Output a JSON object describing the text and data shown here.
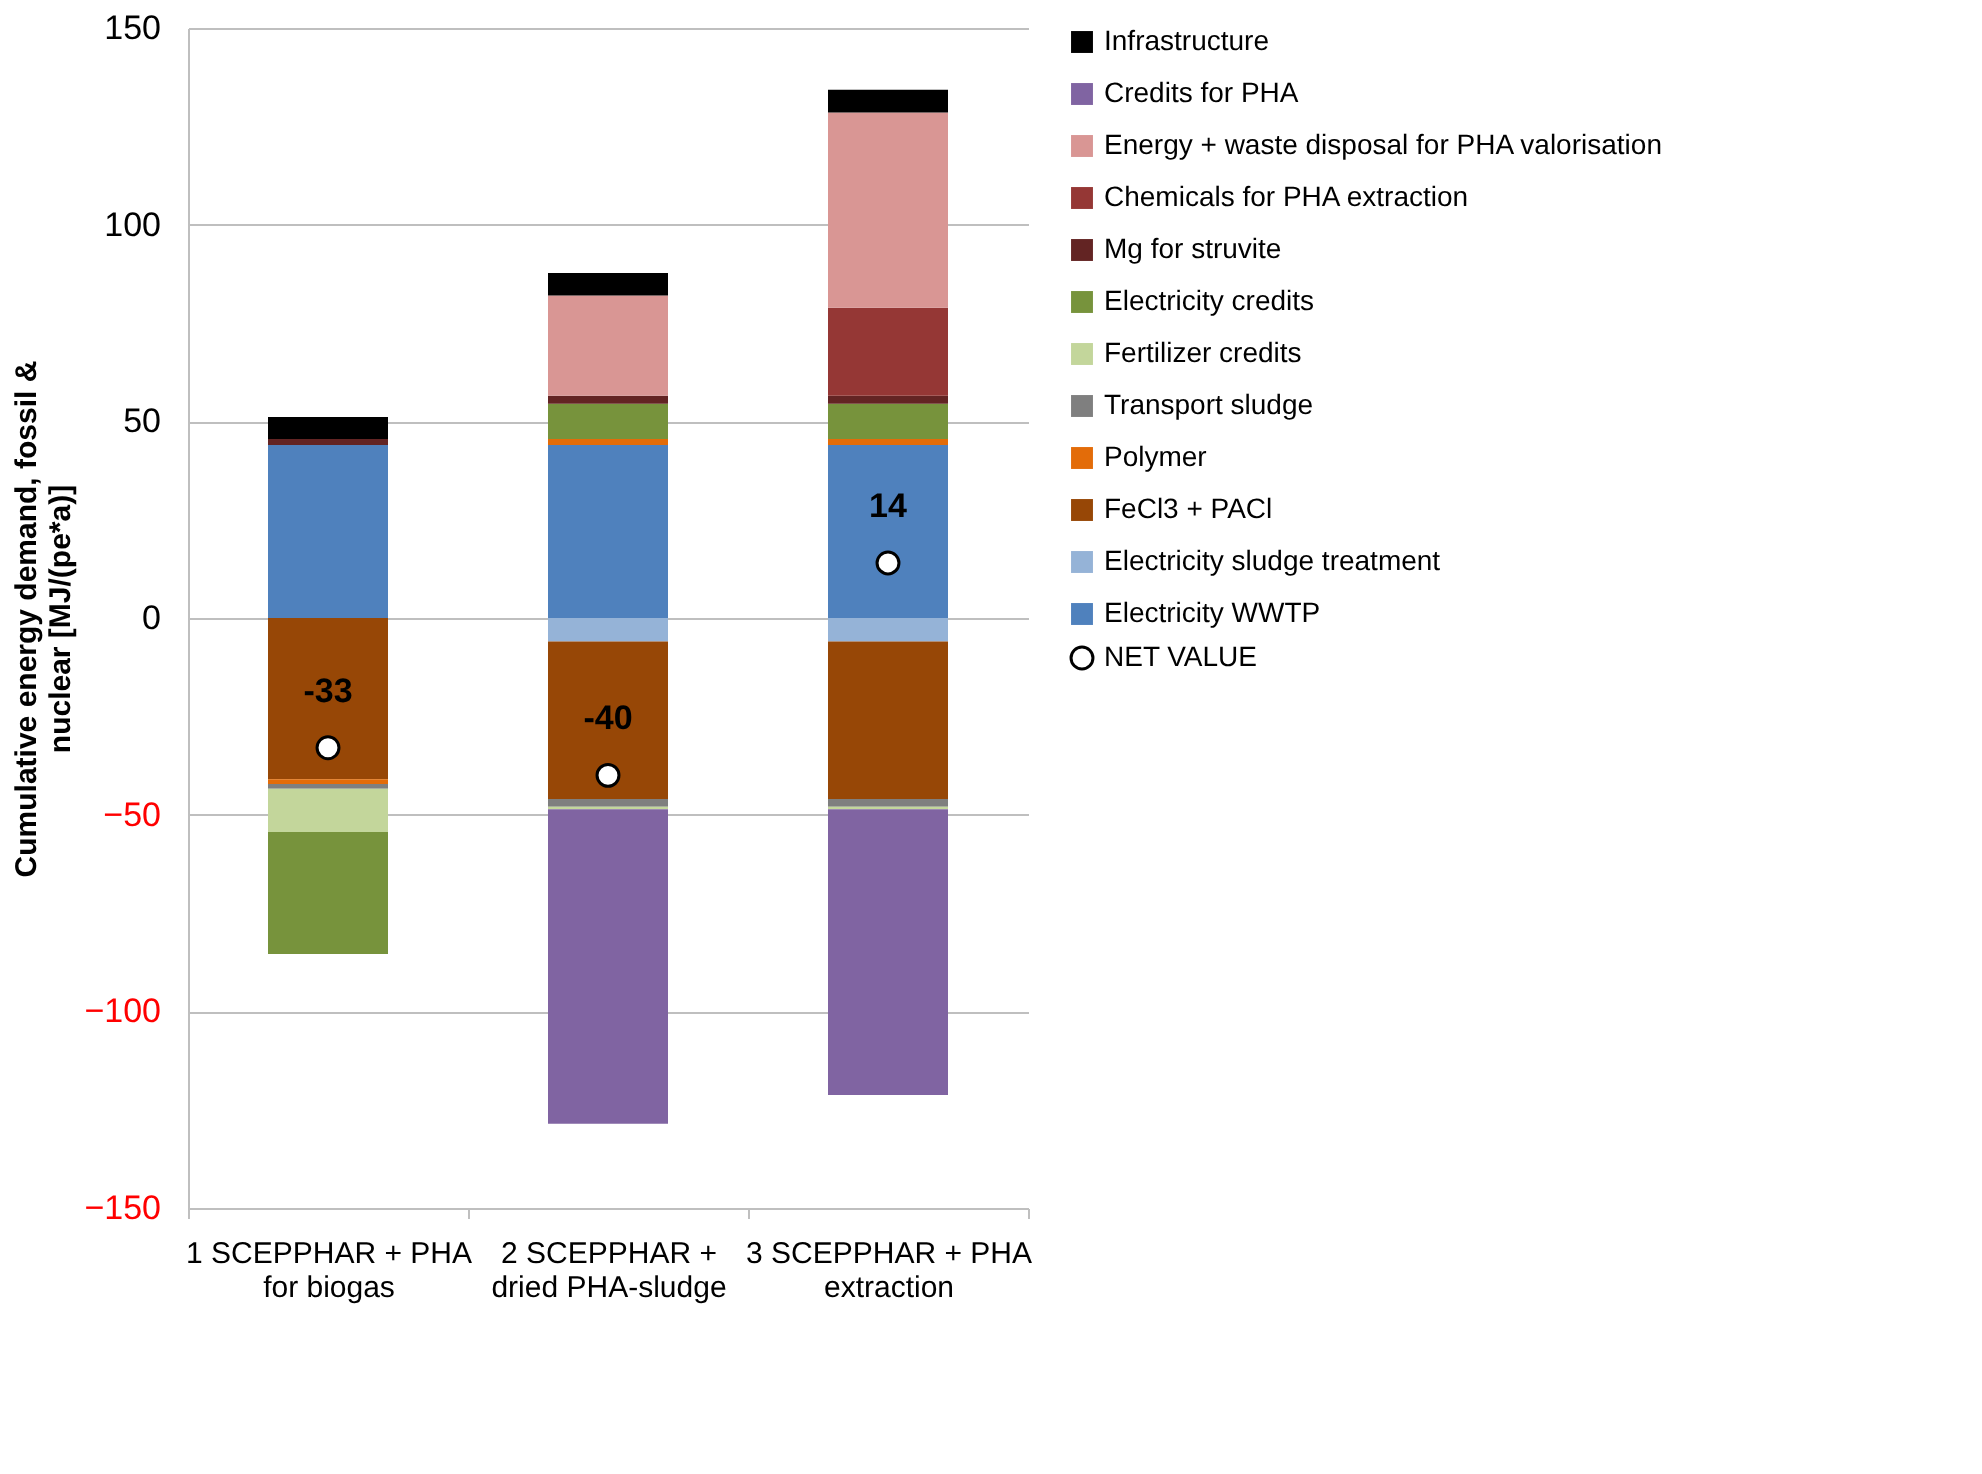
{
  "chart_data": {
    "type": "bar",
    "stacked": true,
    "ylabel": "Cumulative energy demand, fossil & nuclear [MJ/(pe*a)]",
    "categories": [
      "1 SCEPPHAR + PHA for biogas",
      "2 SCEPPHAR + dried PHA-sludge",
      "3 SCEPPHAR + PHA extraction"
    ],
    "ylim": [
      -150,
      150
    ],
    "yticks": [
      -150,
      -100,
      -50,
      0,
      50,
      100,
      150
    ],
    "grid": "y",
    "legend": "right",
    "series": [
      {
        "name": "Electricity WWTP",
        "color": "#4f81bd",
        "values": [
          44,
          44,
          44
        ]
      },
      {
        "name": "Electricity sludge treatment",
        "color": "#95b3d7",
        "values": [
          null,
          -6,
          -6
        ]
      },
      {
        "name": "FeCl3 + PACl",
        "color": "#974706",
        "values": [
          -41,
          -40,
          -40
        ]
      },
      {
        "name": "Polymer",
        "color": "#e36c09",
        "values": [
          -1.2,
          1.5,
          1.5
        ]
      },
      {
        "name": "Transport sludge",
        "color": "#7f7f7f",
        "values": [
          -1.2,
          -2,
          -2
        ]
      },
      {
        "name": "Fertilizer credits",
        "color": "#c3d69b",
        "values": [
          -11,
          -0.6,
          -0.6
        ]
      },
      {
        "name": "Electricity credits",
        "color": "#77933c",
        "values": [
          -31,
          9,
          9
        ]
      },
      {
        "name": "Mg for struvite",
        "color": "#632423",
        "values": [
          1.5,
          2,
          2
        ]
      },
      {
        "name": "Chemicals for PHA extraction",
        "color": "#953735",
        "values": [
          null,
          null,
          22.4
        ]
      },
      {
        "name": "Energy + waste disposal for PHA valorisation",
        "color": "#d99694",
        "values": [
          null,
          25.5,
          49.6
        ]
      },
      {
        "name": "Credits for PHA",
        "color": "#8064a2",
        "values": [
          null,
          -80,
          -72.7
        ]
      },
      {
        "name": "Infrastructure",
        "color": "#000000",
        "values": [
          5.6,
          5.7,
          5.8
        ]
      },
      {
        "name": "NET VALUE",
        "type": "scatter",
        "marker": "circle",
        "color": "#ffffff",
        "values": [
          -33,
          -40,
          14
        ],
        "value_labels": [
          "-33",
          "-40",
          "14"
        ]
      }
    ]
  }
}
